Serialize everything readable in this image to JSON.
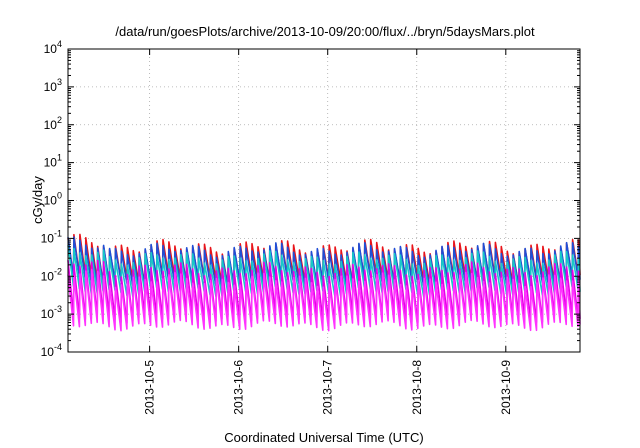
{
  "chart_data": {
    "type": "line",
    "title": "/data/run/goesPlots/archive/2013-10-09/20:00/flux/../bryn/5daysMars.plot",
    "xlabel": "Coordinated Universal Time (UTC)",
    "ylabel": "cGy/day",
    "x_range": [
      "2013-10-04 02:00",
      "2013-10-09 20:00"
    ],
    "x_ticks": [
      "2013-10-5",
      "2013-10-6",
      "2013-10-7",
      "2013-10-8",
      "2013-10-9"
    ],
    "y_scale": "log",
    "ylim": [
      0.0001,
      10000
    ],
    "y_ticks": [
      {
        "base": "10",
        "exp": "-4"
      },
      {
        "base": "10",
        "exp": "-3"
      },
      {
        "base": "10",
        "exp": "-2"
      },
      {
        "base": "10",
        "exp": "-1"
      },
      {
        "base": "10",
        "exp": "0"
      },
      {
        "base": "10",
        "exp": "1"
      },
      {
        "base": "10",
        "exp": "2"
      },
      {
        "base": "10",
        "exp": "3"
      },
      {
        "base": "10",
        "exp": "4"
      }
    ],
    "grid": true,
    "legend": "none",
    "sawtooth_period_hours": 1.6,
    "series": [
      {
        "color": "#e8141a",
        "peak": 0.06,
        "trough": 0.008
      },
      {
        "color": "#1f4fd6",
        "peak": 0.05,
        "trough": 0.007
      },
      {
        "color": "#18c8c8",
        "peak": 0.03,
        "trough": 0.004
      },
      {
        "color": "#e600e6",
        "peak": 0.015,
        "trough": 0.0008
      },
      {
        "color": "#ff33ff",
        "peak": 0.008,
        "trough": 0.0005
      }
    ]
  }
}
